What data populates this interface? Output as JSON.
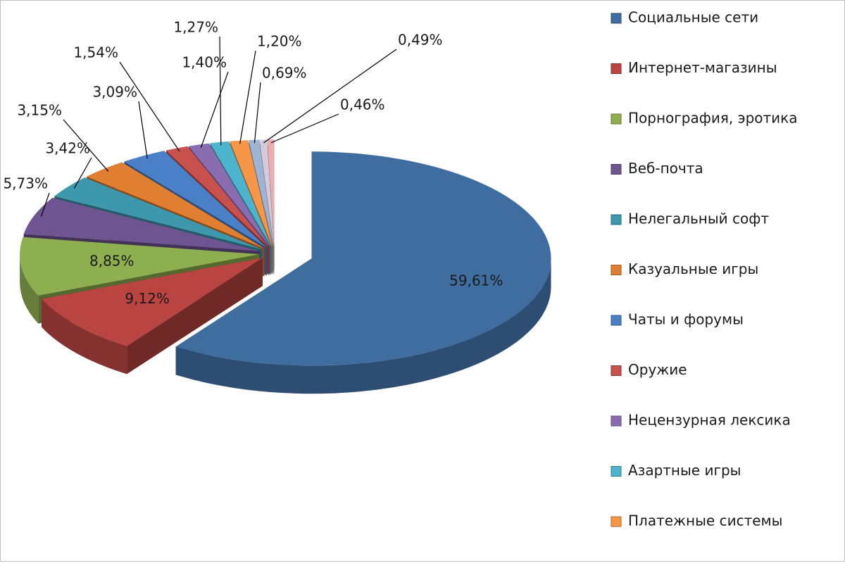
{
  "chart_data": {
    "type": "pie3d",
    "categories": [
      "Социальные сети",
      "Интернет-магазины",
      "Порнография, эротика",
      "Веб-почта",
      "Нелегальный софт",
      "Казуальные игры",
      "Чаты и форумы",
      "Оружие",
      "Нецензурная лексика",
      "Азартные игры",
      "Платежные системы",
      null,
      null,
      null
    ],
    "values": [
      59.61,
      9.12,
      8.85,
      5.73,
      3.42,
      3.15,
      3.09,
      1.54,
      1.4,
      1.27,
      1.2,
      0.69,
      0.49,
      0.46
    ],
    "value_labels": [
      "59,61%",
      "9,12%",
      "8,85%",
      "5,73%",
      "3,42%",
      "3,15%",
      "3,09%",
      "1,54%",
      "1,40%",
      "1,27%",
      "1,20%",
      "0,69%",
      "0,49%",
      "0,46%"
    ],
    "colors": [
      "#3f6d9f",
      "#b94441",
      "#8daf4f",
      "#6e5491",
      "#3d98ae",
      "#e07f31",
      "#4a80c8",
      "#c8504d",
      "#8a6cb0",
      "#4cb4cc",
      "#f79646",
      "#9fb3d4",
      "#d5c9dc",
      "#e8aeb0"
    ]
  }
}
